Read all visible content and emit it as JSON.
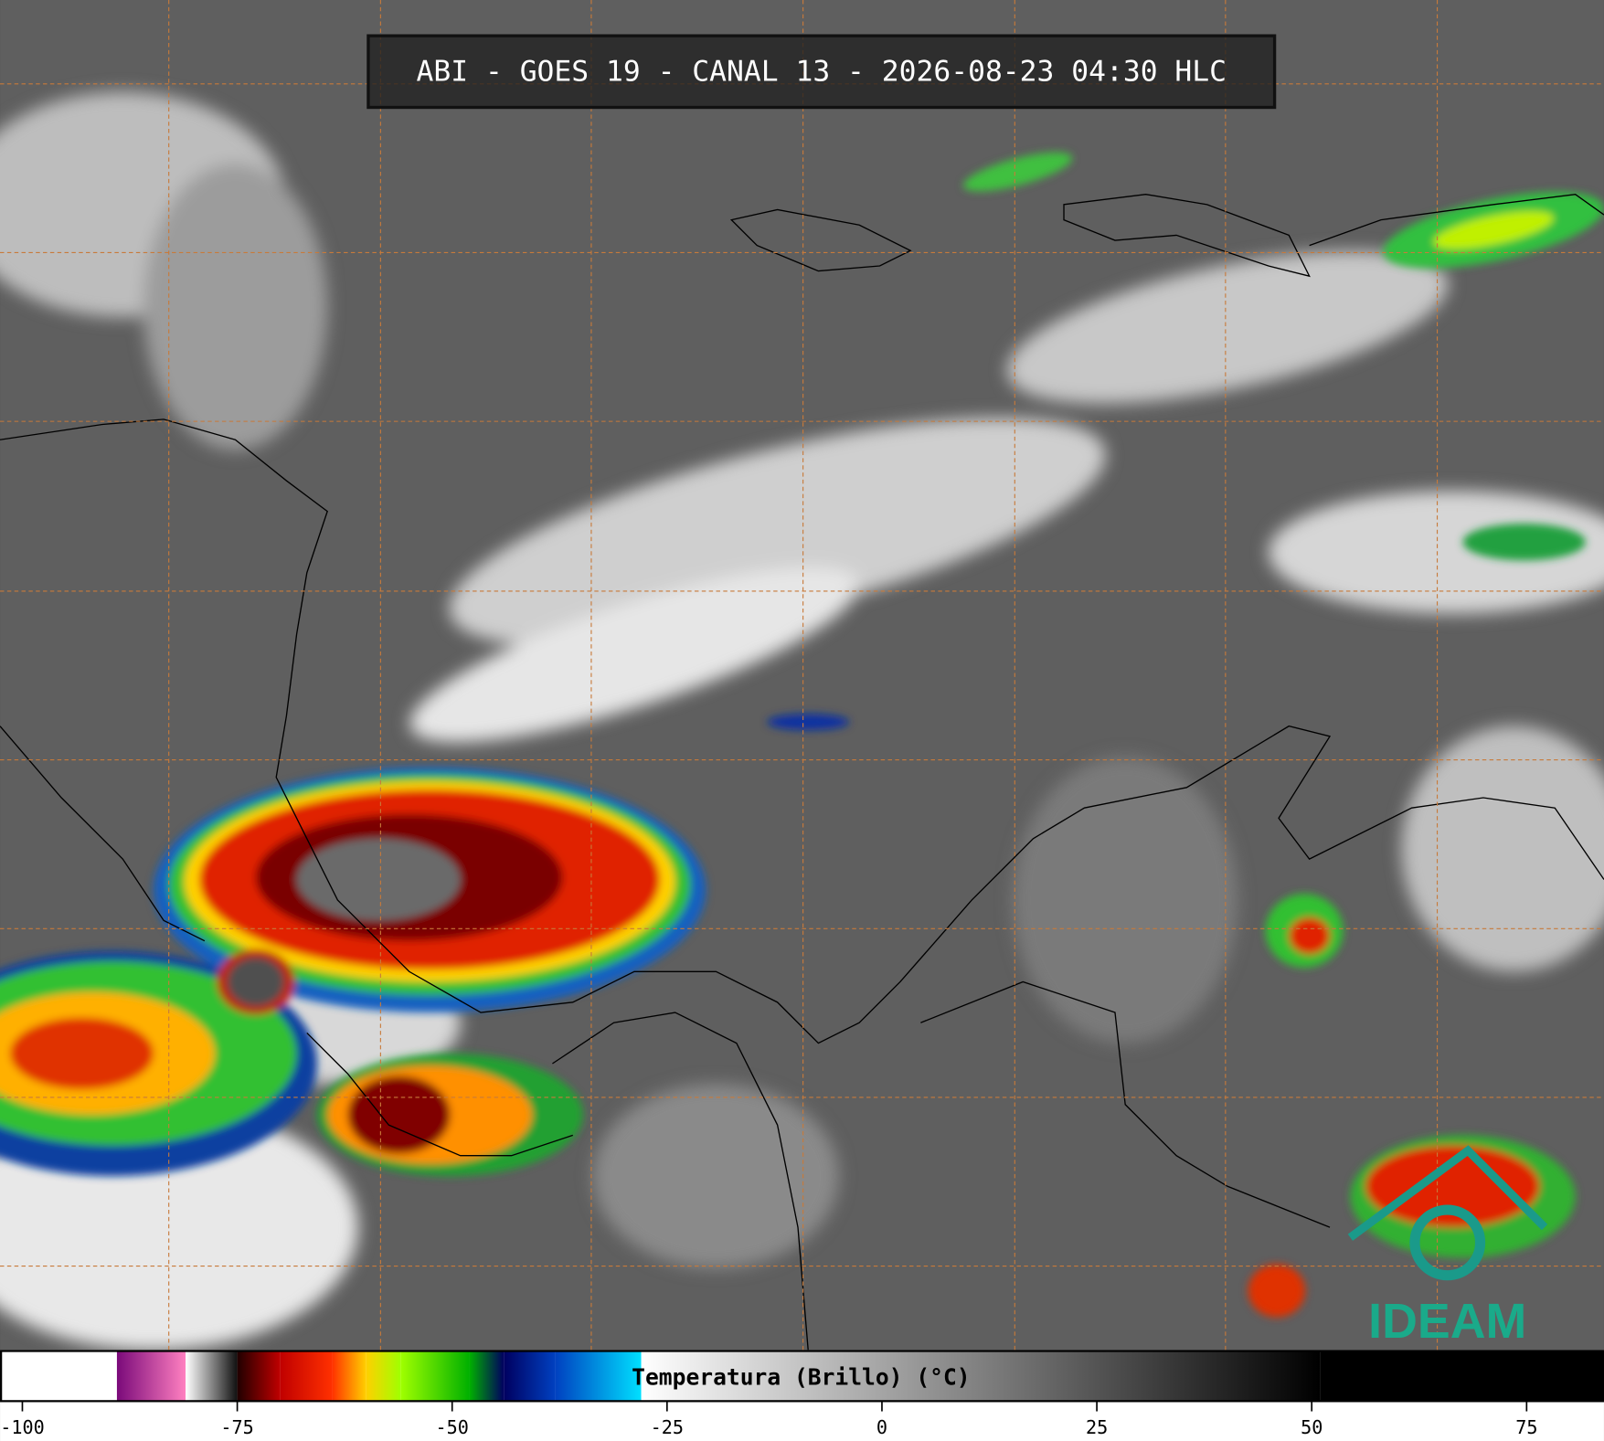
{
  "header": {
    "title": "ABI - GOES 19 - CANAL 13 - 2026-08-23 04:30 HLC"
  },
  "colorbar": {
    "label": "Temperatura (Brillo) (°C)",
    "range": [
      -102.6,
      84
    ],
    "ticks": [
      -100,
      -75,
      -50,
      -25,
      0,
      25,
      50,
      75
    ],
    "stops": [
      {
        "value": -102.6,
        "color": "#ffffff"
      },
      {
        "value": -89,
        "color": "#ffffff"
      },
      {
        "value": -89,
        "color": "#7a0a7a"
      },
      {
        "value": -81,
        "color": "#ff80c0"
      },
      {
        "value": -81,
        "color": "#ffffff"
      },
      {
        "value": -75,
        "color": "#101010"
      },
      {
        "value": -75,
        "color": "#200000"
      },
      {
        "value": -70,
        "color": "#c00000"
      },
      {
        "value": -64,
        "color": "#ff3000"
      },
      {
        "value": -60,
        "color": "#ffd000"
      },
      {
        "value": -56,
        "color": "#a0ff00"
      },
      {
        "value": -48,
        "color": "#00b000"
      },
      {
        "value": -44,
        "color": "#000060"
      },
      {
        "value": -38,
        "color": "#0040c0"
      },
      {
        "value": -28,
        "color": "#00e0ff"
      },
      {
        "value": -28,
        "color": "#ffffff"
      },
      {
        "value": 51,
        "color": "#000000"
      },
      {
        "value": 84,
        "color": "#000000"
      }
    ]
  },
  "logo": {
    "text": "IDEAM"
  }
}
